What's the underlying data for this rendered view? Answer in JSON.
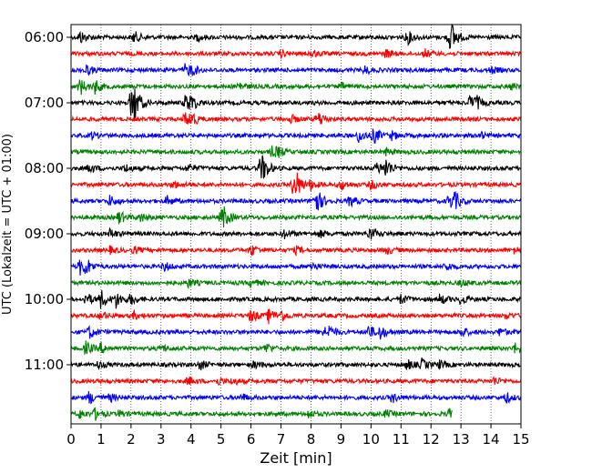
{
  "chart_data": {
    "type": "line",
    "title": "",
    "xlabel": "Zeit  [min]",
    "ylabel": "UTC (Lokalzeit = UTC + 01:00)",
    "xlim": [
      0,
      15
    ],
    "x_ticks": [
      "0",
      "1",
      "2",
      "3",
      "4",
      "5",
      "6",
      "7",
      "8",
      "9",
      "10",
      "11",
      "12",
      "13",
      "14",
      "15"
    ],
    "y_ticks": [
      "06:00",
      "07:00",
      "08:00",
      "09:00",
      "10:00",
      "11:00"
    ],
    "grid": "vertical dotted",
    "colors": [
      "#000000",
      "#ff0000",
      "#0000ff",
      "#008000"
    ],
    "traces": [
      {
        "start": "06:00",
        "color": "#000000",
        "end_min": 15,
        "bursts": [
          [
            0.3,
            1.0
          ],
          [
            2.1,
            0.9
          ],
          [
            4.2,
            0.5
          ],
          [
            11.2,
            1.1
          ],
          [
            12.6,
            1.5
          ],
          [
            12.7,
            1.2
          ]
        ]
      },
      {
        "start": "06:15",
        "color": "#ff0000",
        "end_min": 15,
        "bursts": [
          [
            7.0,
            0.5
          ],
          [
            8.0,
            0.6
          ],
          [
            10.5,
            0.6
          ],
          [
            11.8,
            0.6
          ]
        ]
      },
      {
        "start": "06:30",
        "color": "#0000ff",
        "end_min": 15,
        "bursts": [
          [
            0.5,
            0.8
          ],
          [
            3.8,
            0.8
          ],
          [
            4.0,
            0.7
          ],
          [
            9.8,
            0.6
          ],
          [
            14.0,
            0.5
          ]
        ]
      },
      {
        "start": "06:45",
        "color": "#008000",
        "end_min": 15,
        "bursts": [
          [
            0.3,
            1.3
          ],
          [
            0.8,
            1.0
          ],
          [
            5.6,
            0.7
          ],
          [
            9.0,
            0.5
          ],
          [
            14.7,
            0.5
          ]
        ]
      },
      {
        "start": "07:00",
        "color": "#000000",
        "end_min": 15,
        "bursts": [
          [
            2.0,
            2.2
          ],
          [
            2.1,
            1.8
          ],
          [
            3.8,
            1.2
          ],
          [
            4.0,
            1.0
          ],
          [
            13.3,
            1.0
          ],
          [
            13.5,
            0.8
          ]
        ]
      },
      {
        "start": "07:15",
        "color": "#ff0000",
        "end_min": 15,
        "bursts": [
          [
            3.8,
            1.0
          ],
          [
            4.0,
            0.9
          ],
          [
            7.3,
            0.7
          ],
          [
            8.2,
            0.7
          ],
          [
            8.3,
            0.6
          ]
        ]
      },
      {
        "start": "07:30",
        "color": "#0000ff",
        "end_min": 15,
        "bursts": [
          [
            0.7,
            0.5
          ],
          [
            9.6,
            1.1
          ],
          [
            10.1,
            1.2
          ],
          [
            10.7,
            0.6
          ],
          [
            13.6,
            0.6
          ]
        ]
      },
      {
        "start": "07:45",
        "color": "#008000",
        "end_min": 15,
        "bursts": [
          [
            6.7,
            0.8
          ],
          [
            6.9,
            0.6
          ],
          [
            10.5,
            0.5
          ]
        ]
      },
      {
        "start": "08:00",
        "color": "#000000",
        "end_min": 15,
        "bursts": [
          [
            0.6,
            0.7
          ],
          [
            1.8,
            0.6
          ],
          [
            3.9,
            0.6
          ],
          [
            6.3,
            1.4
          ],
          [
            6.4,
            1.2
          ],
          [
            10.2,
            0.9
          ],
          [
            10.5,
            1.4
          ]
        ]
      },
      {
        "start": "08:15",
        "color": "#ff0000",
        "end_min": 15,
        "bursts": [
          [
            3.4,
            0.5
          ],
          [
            7.4,
            1.5
          ],
          [
            7.5,
            1.3
          ],
          [
            8.0,
            0.7
          ],
          [
            9.0,
            0.8
          ],
          [
            10.0,
            0.7
          ]
        ]
      },
      {
        "start": "08:30",
        "color": "#0000ff",
        "end_min": 15,
        "bursts": [
          [
            1.3,
            0.8
          ],
          [
            3.2,
            0.7
          ],
          [
            8.1,
            1.3
          ],
          [
            8.2,
            1.0
          ],
          [
            9.3,
            0.8
          ],
          [
            12.6,
            1.2
          ],
          [
            12.8,
            1.0
          ]
        ]
      },
      {
        "start": "08:45",
        "color": "#008000",
        "end_min": 15,
        "bursts": [
          [
            1.6,
            1.0
          ],
          [
            2.3,
            0.7
          ],
          [
            5.0,
            1.1
          ],
          [
            5.1,
            0.9
          ]
        ]
      },
      {
        "start": "09:00",
        "color": "#000000",
        "end_min": 15,
        "bursts": [
          [
            1.3,
            0.7
          ],
          [
            7.1,
            0.7
          ],
          [
            8.3,
            0.5
          ],
          [
            9.9,
            0.6
          ],
          [
            10.0,
            0.5
          ]
        ]
      },
      {
        "start": "09:15",
        "color": "#ff0000",
        "end_min": 15,
        "bursts": [
          [
            1.3,
            0.5
          ],
          [
            2.1,
            0.5
          ],
          [
            6.0,
            0.9
          ],
          [
            7.5,
            0.5
          ],
          [
            10.5,
            0.6
          ],
          [
            14.8,
            0.5
          ]
        ]
      },
      {
        "start": "09:30",
        "color": "#0000ff",
        "end_min": 15,
        "bursts": [
          [
            0.3,
            1.2
          ],
          [
            0.5,
            1.0
          ],
          [
            3.1,
            0.7
          ],
          [
            8.0,
            0.7
          ],
          [
            12.5,
            0.6
          ]
        ]
      },
      {
        "start": "09:45",
        "color": "#008000",
        "end_min": 15,
        "bursts": [
          [
            3.9,
            0.6
          ],
          [
            6.0,
            0.6
          ],
          [
            13.0,
            0.5
          ]
        ]
      },
      {
        "start": "10:00",
        "color": "#000000",
        "end_min": 15,
        "bursts": [
          [
            0.5,
            1.0
          ],
          [
            1.0,
            1.4
          ],
          [
            1.5,
            1.2
          ],
          [
            2.0,
            0.8
          ],
          [
            11.0,
            0.7
          ],
          [
            12.3,
            0.8
          ],
          [
            13.0,
            0.8
          ]
        ]
      },
      {
        "start": "10:15",
        "color": "#ff0000",
        "end_min": 15,
        "bursts": [
          [
            1.0,
            0.6
          ],
          [
            2.1,
            0.5
          ],
          [
            6.0,
            1.0
          ],
          [
            6.6,
            1.1
          ],
          [
            7.0,
            0.8
          ],
          [
            14.5,
            0.4
          ]
        ]
      },
      {
        "start": "10:30",
        "color": "#0000ff",
        "end_min": 15,
        "bursts": [
          [
            0.6,
            1.0
          ],
          [
            8.4,
            0.8
          ],
          [
            8.6,
            0.7
          ],
          [
            9.9,
            1.1
          ],
          [
            10.3,
            1.0
          ],
          [
            13.0,
            0.8
          ],
          [
            14.3,
            0.6
          ]
        ]
      },
      {
        "start": "10:45",
        "color": "#008000",
        "end_min": 15,
        "bursts": [
          [
            0.5,
            1.0
          ],
          [
            1.0,
            0.7
          ],
          [
            3.0,
            0.6
          ],
          [
            6.5,
            0.8
          ],
          [
            14.8,
            0.7
          ]
        ]
      },
      {
        "start": "11:00",
        "color": "#000000",
        "end_min": 15,
        "bursts": [
          [
            0.9,
            0.5
          ],
          [
            4.3,
            0.7
          ],
          [
            6.1,
            0.5
          ],
          [
            11.2,
            0.8
          ],
          [
            11.7,
            0.8
          ],
          [
            12.3,
            0.6
          ]
        ]
      },
      {
        "start": "11:15",
        "color": "#ff0000",
        "end_min": 15,
        "bursts": [
          [
            3.9,
            0.6
          ],
          [
            4.9,
            0.5
          ],
          [
            5.4,
            0.5
          ],
          [
            14.1,
            0.6
          ]
        ]
      },
      {
        "start": "11:30",
        "color": "#0000ff",
        "end_min": 15,
        "bursts": [
          [
            0.6,
            1.0
          ],
          [
            1.3,
            0.6
          ],
          [
            5.7,
            0.5
          ],
          [
            10.7,
            0.7
          ],
          [
            14.5,
            0.8
          ]
        ]
      },
      {
        "start": "11:45",
        "color": "#008000",
        "end_min": 12.7,
        "bursts": [
          [
            0.3,
            0.7
          ],
          [
            0.8,
            0.8
          ],
          [
            1.6,
            0.5
          ],
          [
            7.9,
            0.6
          ],
          [
            10.5,
            0.5
          ],
          [
            12.6,
            0.7
          ]
        ]
      }
    ]
  }
}
